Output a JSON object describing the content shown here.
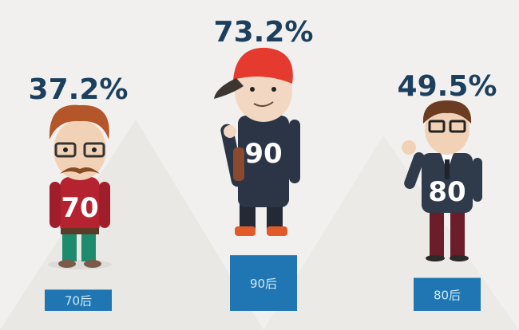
{
  "chart_data": {
    "type": "bar",
    "categories": [
      "70后",
      "90后",
      "80后"
    ],
    "values": [
      37.2,
      73.2,
      49.5
    ],
    "value_labels": [
      "37.2%",
      "73.2%",
      "49.5%"
    ],
    "jersey_numbers": [
      "70",
      "90",
      "80"
    ],
    "unit": "%",
    "ylim": [
      0,
      100
    ],
    "grid": false,
    "colors": {
      "podium": "#1f76b3",
      "label": "#1d3f5e",
      "background": "#f1f0ee"
    }
  }
}
